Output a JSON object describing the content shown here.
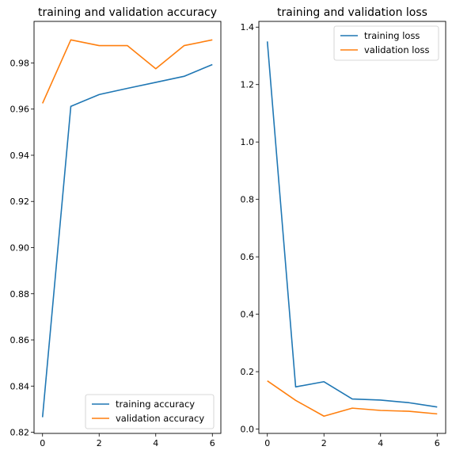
{
  "chart_data": [
    {
      "type": "line",
      "title": "training and validation accuracy",
      "xlabel": "",
      "ylabel": "",
      "xlim": [
        -0.3,
        6.3
      ],
      "ylim": [
        0.8195,
        0.998
      ],
      "xticks": [
        0,
        2,
        4,
        6
      ],
      "xtick_labels": [
        "0",
        "2",
        "4",
        "6"
      ],
      "yticks": [
        0.82,
        0.84,
        0.86,
        0.88,
        0.9,
        0.92,
        0.94,
        0.96,
        0.98
      ],
      "ytick_labels": [
        "0.82",
        "0.84",
        "0.86",
        "0.88",
        "0.90",
        "0.92",
        "0.94",
        "0.96",
        "0.98"
      ],
      "grid": false,
      "legend": "lower-right",
      "x": [
        0,
        1,
        2,
        3,
        4,
        5,
        6
      ],
      "series": [
        {
          "name": "training accuracy",
          "color": "#1f77b4",
          "values": [
            0.8265,
            0.9612,
            0.9663,
            0.969,
            0.9716,
            0.9742,
            0.9793
          ]
        },
        {
          "name": "validation accuracy",
          "color": "#ff7f0e",
          "values": [
            0.9625,
            0.99,
            0.9875,
            0.9875,
            0.9775,
            0.9875,
            0.99
          ]
        }
      ]
    },
    {
      "type": "line",
      "title": "training and validation loss",
      "xlabel": "",
      "ylabel": "",
      "xlim": [
        -0.3,
        6.3
      ],
      "ylim": [
        -0.015,
        1.42
      ],
      "xticks": [
        0,
        2,
        4,
        6
      ],
      "xtick_labels": [
        "0",
        "2",
        "4",
        "6"
      ],
      "yticks": [
        0.0,
        0.2,
        0.4,
        0.6,
        0.8,
        1.0,
        1.2,
        1.4
      ],
      "ytick_labels": [
        "0.0",
        "0.2",
        "0.4",
        "0.6",
        "0.8",
        "1.0",
        "1.2",
        "1.4"
      ],
      "grid": false,
      "legend": "upper-right",
      "x": [
        0,
        1,
        2,
        3,
        4,
        5,
        6
      ],
      "series": [
        {
          "name": "training loss",
          "color": "#1f77b4",
          "values": [
            1.35,
            0.147,
            0.165,
            0.105,
            0.101,
            0.092,
            0.077
          ]
        },
        {
          "name": "validation loss",
          "color": "#ff7f0e",
          "values": [
            0.168,
            0.1,
            0.045,
            0.073,
            0.065,
            0.062,
            0.053
          ]
        }
      ]
    }
  ]
}
